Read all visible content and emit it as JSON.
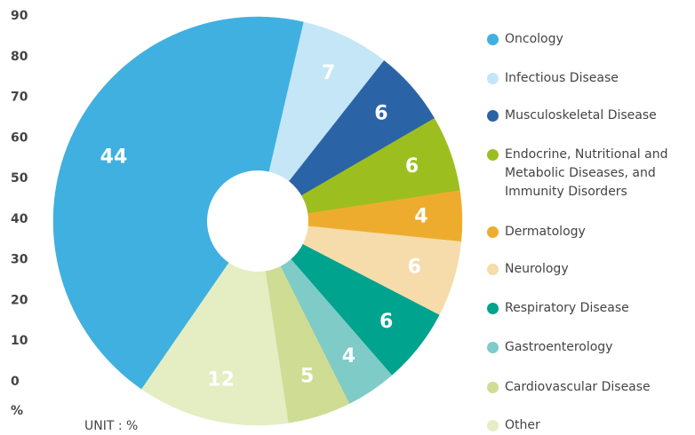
{
  "chart_data": {
    "type": "pie",
    "unit_label": "UNIT : %",
    "y_label": "%",
    "ylim": [
      0,
      90
    ],
    "yticks": [
      0,
      10,
      20,
      30,
      40,
      50,
      60,
      70,
      80,
      90
    ],
    "series": [
      {
        "name": "Oncology",
        "color": "#3fb0e0",
        "values": [
          44
        ]
      },
      {
        "name": "Infectious Disease",
        "color": "#c4e6f7",
        "values": [
          7
        ]
      },
      {
        "name": "Musculoskeletal Disease",
        "color": "#2b64a6",
        "values": [
          6
        ]
      },
      {
        "name": "Endocrine, Nutritional and Metabolic Diseases, and Immunity Disorders",
        "color": "#9cbf1f",
        "values": [
          6
        ]
      },
      {
        "name": "Dermatology",
        "color": "#eeac2f",
        "values": [
          4
        ]
      },
      {
        "name": "Neurology",
        "color": "#f6dcaa",
        "values": [
          6
        ]
      },
      {
        "name": "Respiratory Disease",
        "color": "#00a38e",
        "values": [
          6
        ]
      },
      {
        "name": "Gastroenterology",
        "color": "#7ecbc8",
        "values": [
          4
        ]
      },
      {
        "name": "Cardiovascular Disease",
        "color": "#cfdc93",
        "values": [
          5
        ]
      },
      {
        "name": "Other",
        "color": "#e5edc3",
        "values": [
          12
        ]
      }
    ]
  }
}
